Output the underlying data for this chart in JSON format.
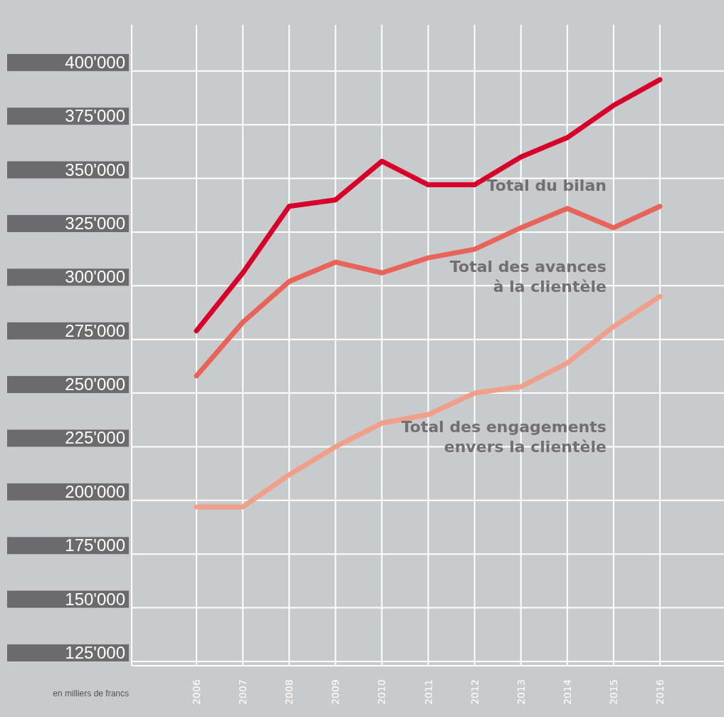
{
  "chart_data": {
    "type": "line",
    "categories": [
      "2006",
      "2007",
      "2008",
      "2009",
      "2010",
      "2011",
      "2012",
      "2013",
      "2014",
      "2015",
      "2016"
    ],
    "series": [
      {
        "name": "Total du bilan",
        "color": "#d7002b",
        "values": [
          279000,
          306000,
          337000,
          340000,
          358000,
          347000,
          347000,
          360000,
          369000,
          384000,
          396000
        ]
      },
      {
        "name": "Total des avances\nà la clientèle",
        "color": "#e8645a",
        "values": [
          258000,
          283000,
          302000,
          311000,
          306000,
          313000,
          317000,
          327000,
          336000,
          327000,
          337000
        ]
      },
      {
        "name": "Total des engagements\nenvers la clientèle",
        "color": "#f0a08a",
        "values": [
          197000,
          197000,
          212000,
          225000,
          236000,
          240000,
          250000,
          253000,
          264000,
          281000,
          295000
        ]
      }
    ],
    "ylim": [
      123000,
      421500
    ],
    "yticks": [
      {
        "value": 125000,
        "label": "125'000"
      },
      {
        "value": 150000,
        "label": "150'000"
      },
      {
        "value": 175000,
        "label": "175'000"
      },
      {
        "value": 200000,
        "label": "200'000"
      },
      {
        "value": 225000,
        "label": "225'000"
      },
      {
        "value": 250000,
        "label": "250'000"
      },
      {
        "value": 275000,
        "label": "275'000"
      },
      {
        "value": 300000,
        "label": "300'000"
      },
      {
        "value": 325000,
        "label": "325'000"
      },
      {
        "value": 350000,
        "label": "350'000"
      },
      {
        "value": 375000,
        "label": "375'000"
      },
      {
        "value": 400000,
        "label": "400'000"
      }
    ],
    "grid": true,
    "marker": "none",
    "line_style": "solid",
    "annotations": [
      "en milliers de francs"
    ]
  }
}
